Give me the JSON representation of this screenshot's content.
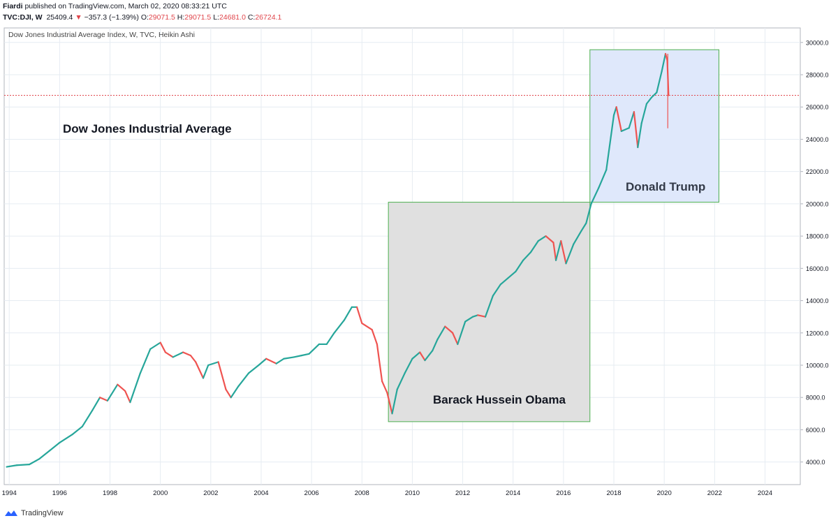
{
  "header": {
    "author": "Fiardi",
    "published": "published on TradingView.com, March 02, 2020 08:33:21 UTC",
    "symbol": "TVC:DJI, W",
    "last": "25409.4",
    "change_arrow": "▼",
    "change": "−357.3 (−1.39%)",
    "o_label": "O:",
    "o_value": "29071.5",
    "h_label": "H:",
    "h_value": "29071.5",
    "l_label": "L:",
    "l_value": "24681.0",
    "c_label": "C:",
    "c_value": "26724.1"
  },
  "chart_data": {
    "type": "line",
    "title": "Dow Jones Industrial Average Index, W, TVC, Heikin Ashi",
    "annotation_main": "Dow Jones Industrial Average",
    "annotation_obama": "Barack Hussein Obama",
    "annotation_trump": "Donald Trump",
    "x": [
      1993.9,
      1994.3,
      1994.8,
      1995.2,
      1995.6,
      1996.0,
      1996.5,
      1996.9,
      1997.3,
      1997.6,
      1997.9,
      1998.3,
      1998.6,
      1998.8,
      1999.2,
      1999.6,
      2000.0,
      2000.2,
      2000.5,
      2000.9,
      2001.2,
      2001.4,
      2001.7,
      2001.9,
      2002.3,
      2002.6,
      2002.8,
      2003.1,
      2003.5,
      2003.9,
      2004.2,
      2004.6,
      2004.9,
      2005.3,
      2005.6,
      2005.9,
      2006.3,
      2006.6,
      2006.9,
      2007.3,
      2007.6,
      2007.8,
      2008.0,
      2008.4,
      2008.6,
      2008.8,
      2009.0,
      2009.2,
      2009.4,
      2009.7,
      2010.0,
      2010.3,
      2010.5,
      2010.8,
      2011.0,
      2011.3,
      2011.6,
      2011.8,
      2012.1,
      2012.4,
      2012.6,
      2012.9,
      2013.2,
      2013.5,
      2013.8,
      2014.1,
      2014.4,
      2014.7,
      2015.0,
      2015.3,
      2015.6,
      2015.7,
      2015.9,
      2016.1,
      2016.4,
      2016.7,
      2016.9,
      2017.1,
      2017.4,
      2017.7,
      2018.0,
      2018.1,
      2018.3,
      2018.6,
      2018.8,
      2018.95,
      2019.1,
      2019.3,
      2019.5,
      2019.7,
      2019.9,
      2020.05,
      2020.12,
      2020.17
    ],
    "values": [
      3700,
      3800,
      3850,
      4200,
      4700,
      5200,
      5700,
      6200,
      7200,
      8000,
      7800,
      8800,
      8400,
      7700,
      9500,
      11000,
      11400,
      10800,
      10500,
      10800,
      10600,
      10200,
      9200,
      10000,
      10200,
      8500,
      8000,
      8700,
      9500,
      10000,
      10400,
      10100,
      10400,
      10500,
      10600,
      10700,
      11300,
      11300,
      12000,
      12800,
      13600,
      13600,
      12600,
      12200,
      11300,
      9000,
      8300,
      7000,
      8500,
      9500,
      10400,
      10800,
      10300,
      10900,
      11600,
      12400,
      12000,
      11300,
      12700,
      13000,
      13100,
      13000,
      14300,
      15000,
      15400,
      15800,
      16500,
      17000,
      17700,
      18000,
      17600,
      16500,
      17700,
      16300,
      17500,
      18300,
      18800,
      20000,
      21000,
      22100,
      25500,
      26000,
      24500,
      24700,
      25700,
      23500,
      25000,
      26200,
      26600,
      26900,
      28200,
      29300,
      28900,
      26724
    ],
    "xlim": [
      1993.8,
      2025.4
    ],
    "ylim": [
      2600,
      30900
    ],
    "x_ticks": [
      "1994",
      "1996",
      "1998",
      "2000",
      "2002",
      "2004",
      "2006",
      "2008",
      "2010",
      "2012",
      "2014",
      "2016",
      "2018",
      "2020",
      "2022",
      "2024"
    ],
    "y_ticks": [
      "4000.0",
      "6000.0",
      "8000.0",
      "10000.0",
      "12000.0",
      "14000.0",
      "16000.0",
      "18000.0",
      "20000.0",
      "22000.0",
      "24000.0",
      "26000.0",
      "28000.0",
      "30000.0"
    ],
    "price_line": 26724.1,
    "obama_box": {
      "x": [
        2009.05,
        2017.05
      ],
      "y": [
        6500,
        20100
      ]
    },
    "trump_box": {
      "x": [
        2017.05,
        2022.17
      ],
      "y": [
        20100,
        29550
      ]
    },
    "colors": {
      "up": "#26a69a",
      "down": "#ef5350",
      "obama_fill": "#e0e0e0",
      "trump_fill": "#dfe8fb",
      "box_border": "#4caf50",
      "price_line": "#e0454b"
    }
  },
  "footer": {
    "brand": "TradingView"
  }
}
